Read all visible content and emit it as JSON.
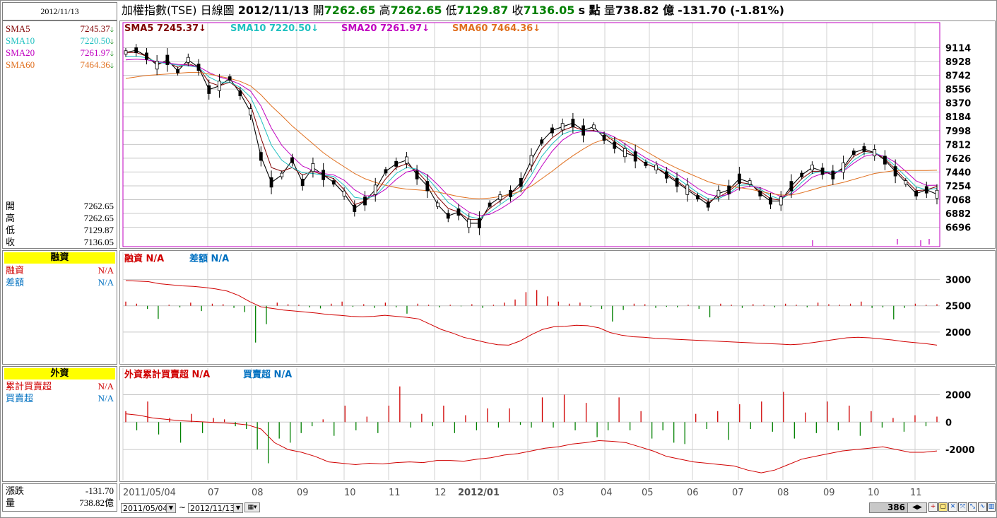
{
  "header": {
    "date": "2012/11/13",
    "index_name": "加權指數(TSE)",
    "chart_kind": "日線圖",
    "open_label": "開",
    "open": "7262.65",
    "high_label": "高",
    "high": "7262.65",
    "low_label": "低",
    "low": "7129.87",
    "close_label": "收",
    "close": "7136.05",
    "s_label": "s 點",
    "vol_label": "量",
    "vol": "738.82 億",
    "change": "-131.70 (-1.81%)"
  },
  "sma": [
    {
      "name": "SMA5",
      "value": "7245.37",
      "color": "#800000",
      "arrow": "down"
    },
    {
      "name": "SMA10",
      "value": "7220.50",
      "color": "#20c0c0",
      "arrow": "down"
    },
    {
      "name": "SMA20",
      "value": "7261.97",
      "color": "#c000c0",
      "arrow": "down"
    },
    {
      "name": "SMA60",
      "value": "7464.36",
      "color": "#e07020",
      "arrow": "down"
    }
  ],
  "ohlc_panel": [
    {
      "k": "開",
      "v": "7262.65"
    },
    {
      "k": "高",
      "v": "7262.65"
    },
    {
      "k": "低",
      "v": "7129.87"
    },
    {
      "k": "收",
      "v": "7136.05"
    }
  ],
  "margin_panel": {
    "title": "融資",
    "rows": [
      {
        "k": "融資",
        "v": "N/A",
        "color": "#d00000"
      },
      {
        "k": "差額",
        "v": "N/A",
        "color": "#0070c0"
      }
    ],
    "legend": [
      {
        "name": "融資",
        "value": "N/A",
        "color": "#d00000"
      },
      {
        "name": "差額",
        "value": "N/A",
        "color": "#0070c0"
      }
    ]
  },
  "foreign_panel": {
    "title": "外資",
    "rows": [
      {
        "k": "累計買賣超",
        "v": "N/A",
        "color": "#d00000"
      },
      {
        "k": "買賣超",
        "v": "N/A",
        "color": "#0070c0"
      }
    ],
    "legend": [
      {
        "name": "外資累計買賣超",
        "value": "N/A",
        "color": "#d00000"
      },
      {
        "name": "買賣超",
        "value": "N/A",
        "color": "#0070c0"
      }
    ]
  },
  "footer_panel": [
    {
      "k": "漲跌",
      "v": "-131.70"
    },
    {
      "k": "量",
      "v": "738.82億"
    }
  ],
  "controls": {
    "start_date": "2011/05/04",
    "end_date": "2012/11/13",
    "tilde": "~",
    "bar_count": "386"
  },
  "chart_data": [
    {
      "type": "line",
      "title": "加權指數(TSE) 日線圖",
      "y_ticks": [
        9114,
        8928,
        8742,
        8556,
        8370,
        8184,
        7998,
        7812,
        7626,
        7440,
        7254,
        7068,
        6882,
        6696
      ],
      "ylim": [
        6530,
        9300
      ],
      "x_ticks": [
        "2011/05/04",
        "07",
        "08",
        "09",
        "10",
        "11",
        "12",
        "2012/01",
        "03",
        "04",
        "05",
        "06",
        "07",
        "08",
        "09",
        "10",
        "11"
      ],
      "grid": true,
      "series": [
        {
          "name": "收盤",
          "color": "#000000",
          "values": [
            9050,
            9080,
            9000,
            8880,
            8950,
            8800,
            8950,
            8850,
            8550,
            8600,
            8700,
            8500,
            8250,
            7650,
            7300,
            7400,
            7600,
            7300,
            7500,
            7400,
            7300,
            7150,
            6950,
            7050,
            7200,
            7450,
            7550,
            7600,
            7400,
            7250,
            7000,
            6850,
            6900,
            6750,
            6750,
            7000,
            7100,
            7150,
            7300,
            7600,
            7850,
            8000,
            8050,
            8100,
            8000,
            8050,
            7900,
            7800,
            7700,
            7650,
            7550,
            7500,
            7400,
            7300,
            7200,
            7100,
            7000,
            7150,
            7200,
            7350,
            7300,
            7150,
            7050,
            7050,
            7250,
            7400,
            7500,
            7450,
            7400,
            7500,
            7700,
            7750,
            7700,
            7600,
            7450,
            7300,
            7150,
            7200,
            7140
          ]
        },
        {
          "name": "SMA5",
          "color": "#800000",
          "values": [
            9050,
            9050,
            9000,
            8900,
            8920,
            8850,
            8900,
            8850,
            8650,
            8600,
            8650,
            8550,
            8350,
            7900,
            7500,
            7450,
            7500,
            7400,
            7450,
            7400,
            7350,
            7200,
            7000,
            7050,
            7150,
            7350,
            7500,
            7550,
            7450,
            7300,
            7100,
            6950,
            6900,
            6800,
            6800,
            6950,
            7050,
            7150,
            7250,
            7500,
            7750,
            7900,
            8000,
            8050,
            8000,
            8000,
            7950,
            7850,
            7750,
            7650,
            7550,
            7500,
            7420,
            7320,
            7220,
            7130,
            7040,
            7100,
            7180,
            7300,
            7280,
            7180,
            7080,
            7060,
            7200,
            7350,
            7450,
            7450,
            7420,
            7480,
            7650,
            7720,
            7700,
            7620,
            7480,
            7330,
            7190,
            7200,
            7245
          ]
        },
        {
          "name": "SMA10",
          "color": "#20c0c0",
          "values": [
            9000,
            9000,
            8980,
            8920,
            8900,
            8880,
            8870,
            8850,
            8720,
            8650,
            8650,
            8580,
            8450,
            8150,
            7800,
            7600,
            7500,
            7430,
            7420,
            7400,
            7380,
            7260,
            7100,
            7080,
            7120,
            7270,
            7420,
            7500,
            7480,
            7360,
            7200,
            7030,
            6940,
            6840,
            6810,
            6900,
            7000,
            7100,
            7200,
            7400,
            7650,
            7820,
            7950,
            8000,
            8000,
            7990,
            7960,
            7880,
            7780,
            7680,
            7590,
            7520,
            7450,
            7360,
            7260,
            7160,
            7080,
            7080,
            7150,
            7260,
            7270,
            7210,
            7120,
            7070,
            7160,
            7300,
            7420,
            7450,
            7440,
            7460,
            7600,
            7690,
            7700,
            7640,
            7520,
            7380,
            7240,
            7200,
            7220
          ]
        },
        {
          "name": "SMA20",
          "color": "#c000c0",
          "values": [
            8950,
            8960,
            8950,
            8930,
            8910,
            8890,
            8880,
            8860,
            8780,
            8720,
            8680,
            8620,
            8530,
            8330,
            8030,
            7800,
            7650,
            7520,
            7460,
            7420,
            7400,
            7330,
            7200,
            7120,
            7120,
            7210,
            7340,
            7440,
            7470,
            7400,
            7270,
            7120,
            7000,
            6900,
            6850,
            6870,
            6940,
            7030,
            7130,
            7300,
            7520,
            7720,
            7870,
            7960,
            7990,
            7990,
            7970,
            7910,
            7820,
            7720,
            7630,
            7560,
            7490,
            7410,
            7320,
            7220,
            7140,
            7110,
            7140,
            7220,
            7250,
            7230,
            7170,
            7110,
            7140,
            7250,
            7370,
            7420,
            7430,
            7450,
            7560,
            7650,
            7680,
            7650,
            7570,
            7450,
            7320,
            7260,
            7262
          ]
        },
        {
          "name": "SMA60",
          "color": "#e07020",
          "values": [
            8700,
            8720,
            8740,
            8750,
            8760,
            8770,
            8780,
            8780,
            8760,
            8730,
            8700,
            8660,
            8600,
            8480,
            8330,
            8200,
            8060,
            7940,
            7820,
            7700,
            7600,
            7510,
            7420,
            7350,
            7300,
            7260,
            7230,
            7210,
            7200,
            7190,
            7170,
            7140,
            7110,
            7090,
            7080,
            7090,
            7110,
            7140,
            7180,
            7250,
            7350,
            7450,
            7560,
            7660,
            7750,
            7830,
            7880,
            7890,
            7860,
            7800,
            7720,
            7640,
            7560,
            7490,
            7430,
            7370,
            7310,
            7270,
            7250,
            7230,
            7210,
            7180,
            7150,
            7130,
            7130,
            7160,
            7200,
            7240,
            7270,
            7300,
            7340,
            7380,
            7420,
            7440,
            7460,
            7460,
            7460,
            7460,
            7464
          ]
        }
      ]
    },
    {
      "type": "line",
      "title": "融資",
      "y_ticks": [
        3000,
        2500,
        2000
      ],
      "ylim": [
        1500,
        3250
      ],
      "grid": true,
      "series": [
        {
          "name": "融資",
          "color": "#d00000",
          "values": [
            2980,
            2970,
            2960,
            2920,
            2900,
            2880,
            2870,
            2850,
            2820,
            2780,
            2700,
            2580,
            2480,
            2450,
            2420,
            2400,
            2380,
            2360,
            2330,
            2320,
            2300,
            2290,
            2300,
            2320,
            2300,
            2280,
            2250,
            2150,
            2050,
            1980,
            1900,
            1850,
            1800,
            1760,
            1750,
            1830,
            1950,
            2050,
            2100,
            2110,
            2130,
            2120,
            2080,
            1990,
            1940,
            1910,
            1900,
            1880,
            1870,
            1860,
            1850,
            1840,
            1830,
            1820,
            1810,
            1800,
            1790,
            1780,
            1770,
            1760,
            1770,
            1800,
            1830,
            1860,
            1890,
            1900,
            1890,
            1870,
            1850,
            1820,
            1800,
            1780,
            1750
          ]
        },
        {
          "name": "差額",
          "color": "#008000",
          "values": [
            80,
            40,
            -60,
            -250,
            20,
            -30,
            60,
            -100,
            40,
            30,
            -40,
            -120,
            -700,
            -350,
            60,
            30,
            20,
            -30,
            -50,
            40,
            80,
            -20,
            30,
            -40,
            60,
            -30,
            -150,
            40,
            20,
            -30,
            20,
            -10,
            30,
            -40,
            20,
            60,
            120,
            260,
            300,
            180,
            80,
            40,
            60,
            -20,
            -60,
            -300,
            -80,
            40,
            30,
            -40,
            -20,
            -30,
            20,
            -60,
            -220,
            40,
            20,
            -40,
            30,
            20,
            -30,
            40,
            20,
            -30,
            60,
            30,
            20,
            40,
            80,
            -40,
            -30,
            -260,
            -40,
            40,
            20,
            30
          ]
        }
      ]
    },
    {
      "type": "line",
      "title": "外資",
      "y_ticks": [
        2000,
        0,
        -2000
      ],
      "ylim": [
        -3900,
        2900
      ],
      "grid": true,
      "series": [
        {
          "name": "外資累計買賣超",
          "color": "#d00000",
          "values": [
            600,
            500,
            300,
            200,
            100,
            50,
            0,
            -50,
            -100,
            -200,
            -500,
            -1500,
            -2000,
            -2200,
            -2500,
            -2900,
            -3000,
            -3100,
            -3000,
            -3050,
            -2950,
            -2900,
            -2950,
            -2800,
            -2800,
            -2850,
            -2700,
            -2600,
            -2400,
            -2300,
            -2100,
            -1900,
            -1800,
            -1600,
            -1500,
            -1350,
            -1400,
            -1500,
            -1800,
            -2100,
            -2500,
            -2700,
            -2900,
            -3000,
            -3100,
            -3200,
            -3500,
            -3700,
            -3500,
            -3100,
            -2700,
            -2500,
            -2300,
            -2100,
            -2000,
            -1900,
            -1800,
            -2000,
            -2200,
            -2200,
            -2100
          ]
        },
        {
          "name": "買賣超",
          "color": "#008000",
          "values": [
            800,
            -600,
            1500,
            -900,
            300,
            -1500,
            600,
            -800,
            300,
            200,
            -300,
            -500,
            -2000,
            -3000,
            -1200,
            -1500,
            -800,
            -300,
            200,
            -1000,
            1200,
            -600,
            400,
            -800,
            1200,
            2600,
            -400,
            600,
            -300,
            1200,
            -800,
            500,
            -600,
            1000,
            -400,
            1000,
            -200,
            -400,
            1800,
            -400,
            2000,
            -600,
            1400,
            -1100,
            -600,
            1800,
            -600,
            800,
            -1200,
            -600,
            -1500,
            -1600,
            600,
            -500,
            800,
            -1300,
            1300,
            -500,
            1500,
            -700,
            2200,
            -1200,
            700,
            -800,
            1500,
            -600,
            1200,
            -1000,
            800,
            -400,
            300,
            -700,
            500,
            -300,
            400
          ]
        }
      ]
    }
  ]
}
